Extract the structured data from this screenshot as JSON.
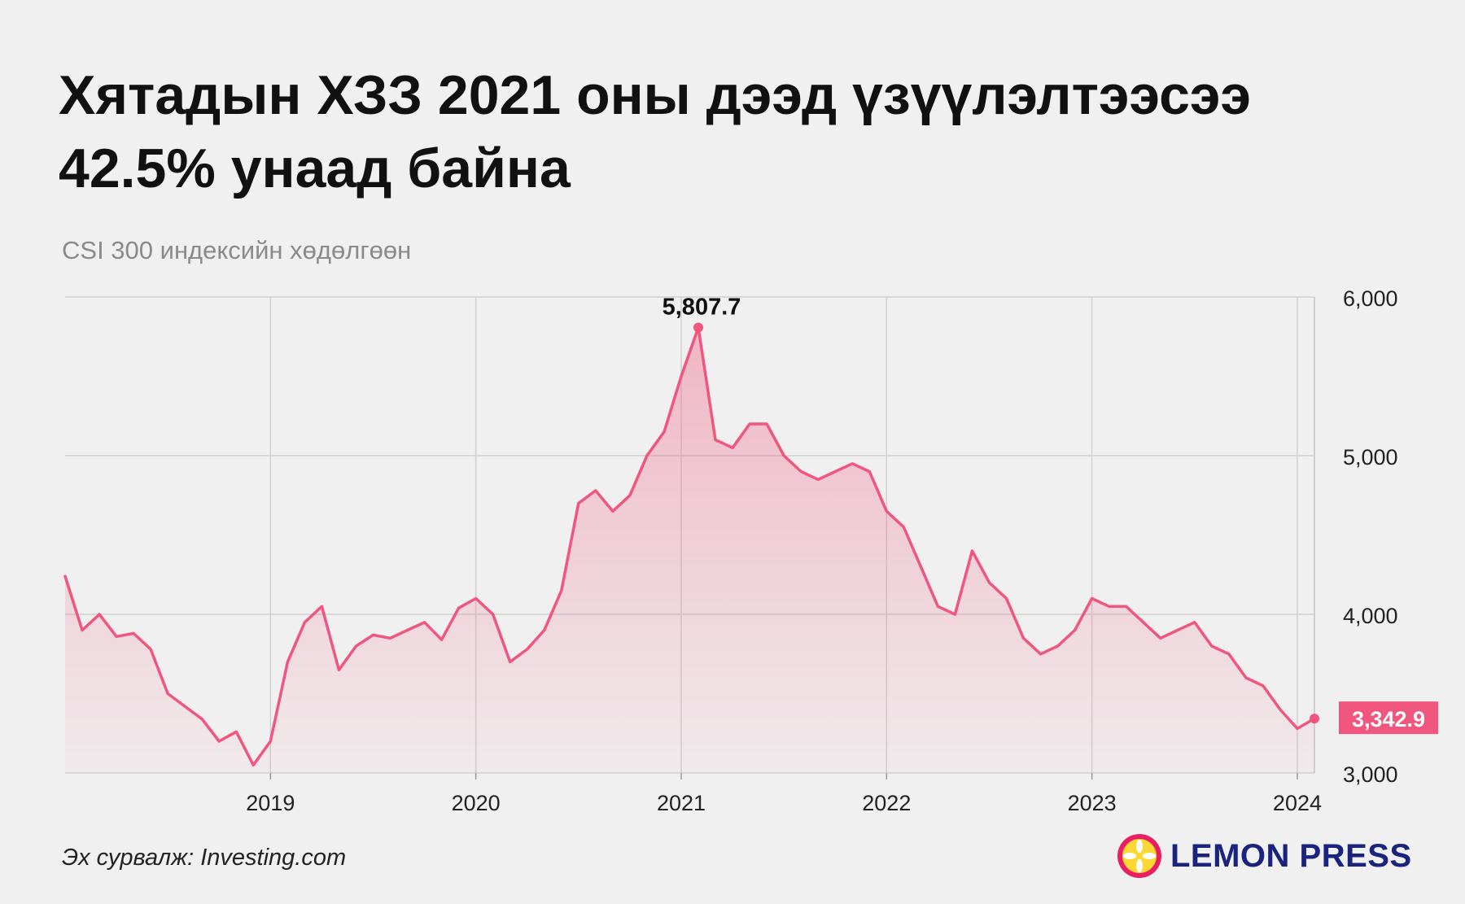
{
  "title": {
    "line1": "Хятадын ХЗЗ 2021 оны дээд үзүүлэлтээсээ",
    "line2": "42.5% унаад байна"
  },
  "subtitle": "CSI 300 индексийн хөдөлгөөн",
  "source": "Эх сурвалж: Investing.com",
  "logo_text": "LEMON PRESS",
  "colors": {
    "line": "#f0567e",
    "area_top": "#f0567e",
    "label_bg": "#f0567e",
    "logo_circle": "#e91e63",
    "logo_lemon": "#fdd835",
    "logo_text": "#1a237e"
  },
  "chart_data": {
    "type": "area",
    "x_tick_labels": [
      "2019",
      "2020",
      "2021",
      "2022",
      "2023",
      "2024"
    ],
    "y_tick_labels": [
      "6,000",
      "5,000",
      "4,000",
      "3,000"
    ],
    "y_ticks": [
      6000,
      5000,
      4000,
      3000
    ],
    "ylim": [
      3000,
      6000
    ],
    "x_range": [
      "2018-01",
      "2024-02"
    ],
    "grid": true,
    "peak": {
      "label": "5,807.7",
      "date": "2021-02",
      "value": 5807.7
    },
    "last": {
      "label": "3,342.9",
      "date": "2024-02",
      "value": 3342.9
    },
    "series": [
      {
        "x": [
          "2018-01",
          "2018-02",
          "2018-03",
          "2018-04",
          "2018-05",
          "2018-06",
          "2018-07",
          "2018-08",
          "2018-09",
          "2018-10",
          "2018-11",
          "2018-12",
          "2019-01",
          "2019-02",
          "2019-03",
          "2019-04",
          "2019-05",
          "2019-06",
          "2019-07",
          "2019-08",
          "2019-09",
          "2019-10",
          "2019-11",
          "2019-12",
          "2020-01",
          "2020-02",
          "2020-03",
          "2020-04",
          "2020-05",
          "2020-06",
          "2020-07",
          "2020-08",
          "2020-09",
          "2020-10",
          "2020-11",
          "2020-12",
          "2021-01",
          "2021-02",
          "2021-03",
          "2021-04",
          "2021-05",
          "2021-06",
          "2021-07",
          "2021-08",
          "2021-09",
          "2021-10",
          "2021-11",
          "2021-12",
          "2022-01",
          "2022-02",
          "2022-03",
          "2022-04",
          "2022-05",
          "2022-06",
          "2022-07",
          "2022-08",
          "2022-09",
          "2022-10",
          "2022-11",
          "2022-12",
          "2023-01",
          "2023-02",
          "2023-03",
          "2023-04",
          "2023-05",
          "2023-06",
          "2023-07",
          "2023-08",
          "2023-09",
          "2023-10",
          "2023-11",
          "2023-12",
          "2024-01",
          "2024-02"
        ],
        "values": [
          4240,
          3900,
          4000,
          3860,
          3880,
          3780,
          3500,
          3420,
          3340,
          3200,
          3260,
          3050,
          3200,
          3700,
          3950,
          4050,
          3650,
          3800,
          3870,
          3850,
          3900,
          3950,
          3840,
          4040,
          4100,
          4000,
          3700,
          3780,
          3900,
          4150,
          4700,
          4780,
          4650,
          4750,
          5000,
          5150,
          5500,
          5807.7,
          5100,
          5050,
          5200,
          5200,
          5000,
          4900,
          4850,
          4900,
          4950,
          4900,
          4650,
          4550,
          4300,
          4050,
          4000,
          4400,
          4200,
          4100,
          3850,
          3750,
          3800,
          3900,
          4100,
          4050,
          4050,
          3950,
          3850,
          3900,
          3950,
          3800,
          3750,
          3600,
          3550,
          3400,
          3280,
          3342.9
        ]
      }
    ]
  }
}
